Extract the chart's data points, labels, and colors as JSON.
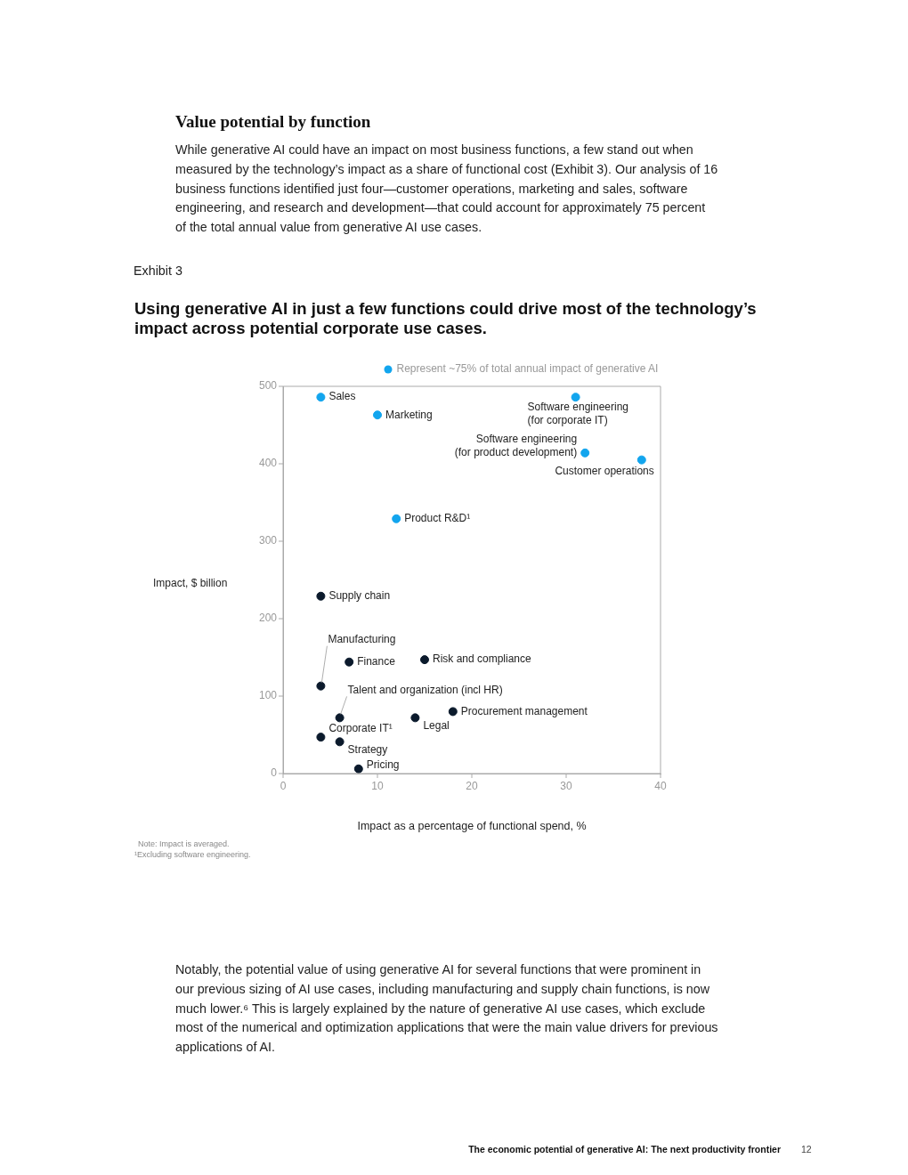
{
  "chart_data": {
    "type": "scatter",
    "title": "Using generative AI in just a few functions could drive most of the technology’s impact across potential corporate use cases.",
    "xlabel": "Impact as a percentage of functional spend, %",
    "ylabel": "Impact, $ billion",
    "series": [
      {
        "name": "Represent ~75% of total annual impact of generative AI",
        "color": "#12a5ee",
        "x": [
          4,
          10,
          31,
          32,
          38,
          12
        ],
        "values": [
          486,
          463,
          486,
          414,
          405,
          329
        ]
      },
      {
        "color": "#0b1a2c",
        "x": [
          4,
          4,
          7,
          15,
          6,
          14,
          18,
          4,
          6,
          8
        ],
        "values": [
          229,
          113,
          144,
          147,
          72,
          72,
          80,
          47,
          41,
          6
        ]
      }
    ],
    "xlim": [
      0,
      40
    ],
    "xticks": [
      0,
      10,
      20,
      30,
      40
    ],
    "ylim": [
      0,
      500
    ],
    "yticks": [
      0,
      100,
      200,
      300,
      400,
      500
    ],
    "grid": false,
    "legend": "top right",
    "marker": "circle",
    "annotations": [
      {
        "text": "Sales",
        "x": 4,
        "y": 486
      },
      {
        "text": "Marketing",
        "x": 10,
        "y": 463
      },
      {
        "text": "Software engineering\n(for corporate IT)",
        "x": 31,
        "y": 486
      },
      {
        "text": "Software engineering\n(for product development)",
        "x": 32,
        "y": 414
      },
      {
        "text": "Customer operations",
        "x": 38,
        "y": 405
      },
      {
        "text": "Product R&D¹",
        "x": 12,
        "y": 329
      },
      {
        "text": "Supply chain",
        "x": 4,
        "y": 229
      },
      {
        "text": "Manufacturing",
        "x": 4,
        "y": 113
      },
      {
        "text": "Finance",
        "x": 7,
        "y": 144
      },
      {
        "text": "Risk and compliance",
        "x": 15,
        "y": 147
      },
      {
        "text": "Talent and organization (incl HR)",
        "x": 6,
        "y": 72
      },
      {
        "text": "Legal",
        "x": 14,
        "y": 72
      },
      {
        "text": "Procurement management",
        "x": 18,
        "y": 80
      },
      {
        "text": "Corporate IT¹",
        "x": 4,
        "y": 47
      },
      {
        "text": "Strategy",
        "x": 6,
        "y": 41
      },
      {
        "text": "Pricing",
        "x": 8,
        "y": 6
      },
      "Value potential by function",
      "While generative AI could have an impact on most business functions, a few stand out when measured by the technology’s impact as a share of functional cost (Exhibit 3). Our analysis of 16 business functions identified just four—customer operations, marketing and sales, software engineering, and research and development—that could account for approximately 75 percent of the total annual value from generative AI use cases.",
      "Exhibit 3",
      "Note: Impact is averaged.",
      "¹Excluding software engineering.",
      "Notably, the potential value of using generative AI for several functions that were prominent in our previous sizing of AI use cases, including manufacturing and supply chain functions, is now much lower.⁶ This is largely explained by the nature of generative AI use cases, which exclude most of the numerical and optimization applications that were the main value drivers for previous applications of AI.",
      "The economic potential of generative AI: The next productivity frontier",
      "12"
    ]
  }
}
